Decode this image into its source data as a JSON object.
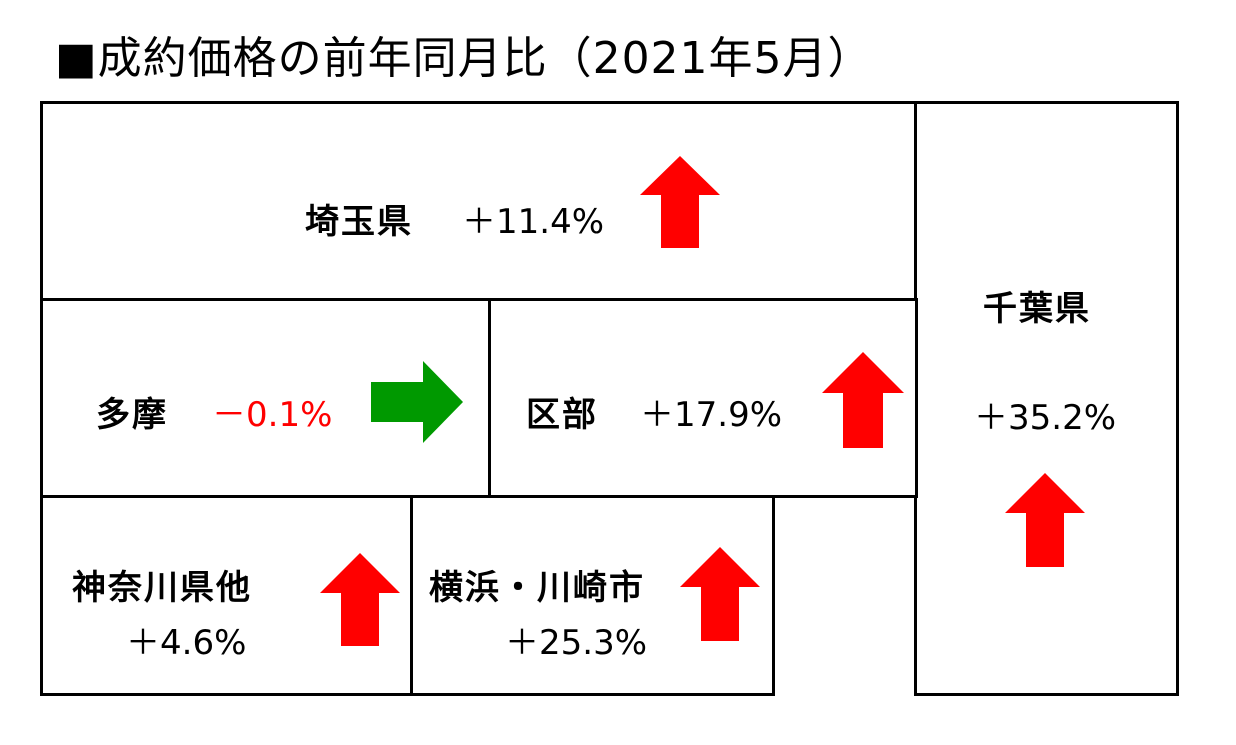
{
  "title": "■成約価格の前年同月比（2021年5月）",
  "colors": {
    "up": "#ff0000",
    "flat": "#009900",
    "negative_text": "#ff0000"
  },
  "regions": [
    {
      "id": "saitama",
      "name": "埼玉県",
      "change": "＋11.4%",
      "trend": "up-arrow"
    },
    {
      "id": "chiba",
      "name": "千葉県",
      "change": "＋35.2%",
      "trend": "up-arrow"
    },
    {
      "id": "tama",
      "name": "多摩",
      "change": "－0.1%",
      "trend": "right-arrow"
    },
    {
      "id": "kubu",
      "name": "区部",
      "change": "＋17.9%",
      "trend": "up-arrow"
    },
    {
      "id": "kanagawa",
      "name": "神奈川県他",
      "change": "＋4.6%",
      "trend": "up-arrow"
    },
    {
      "id": "yokohama",
      "name": "横浜・川崎市",
      "change": "＋25.3%",
      "trend": "up-arrow"
    }
  ]
}
